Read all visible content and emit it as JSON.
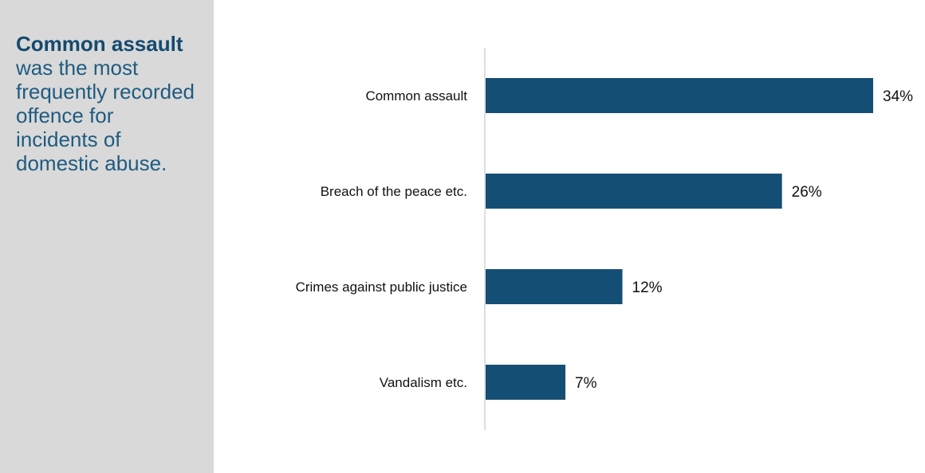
{
  "callout": {
    "highlight": "Common assault",
    "text": " was the most frequently recorded offence for incidents of domestic abuse."
  },
  "colors": {
    "bar": "#154e74",
    "panel": "#d9d9d9",
    "callout_text": "#1f5b80",
    "axis": "#bfbfbf"
  },
  "chart_data": {
    "type": "bar",
    "orientation": "horizontal",
    "categories": [
      "Common assault",
      "Breach of the peace etc.",
      "Crimes against public justice",
      "Vandalism etc."
    ],
    "values": [
      34,
      26,
      12,
      7
    ],
    "value_labels": [
      "34%",
      "26%",
      "12%",
      "7%"
    ],
    "unit": "%",
    "xlim": [
      0,
      34
    ],
    "grid": false,
    "legend": "none"
  }
}
